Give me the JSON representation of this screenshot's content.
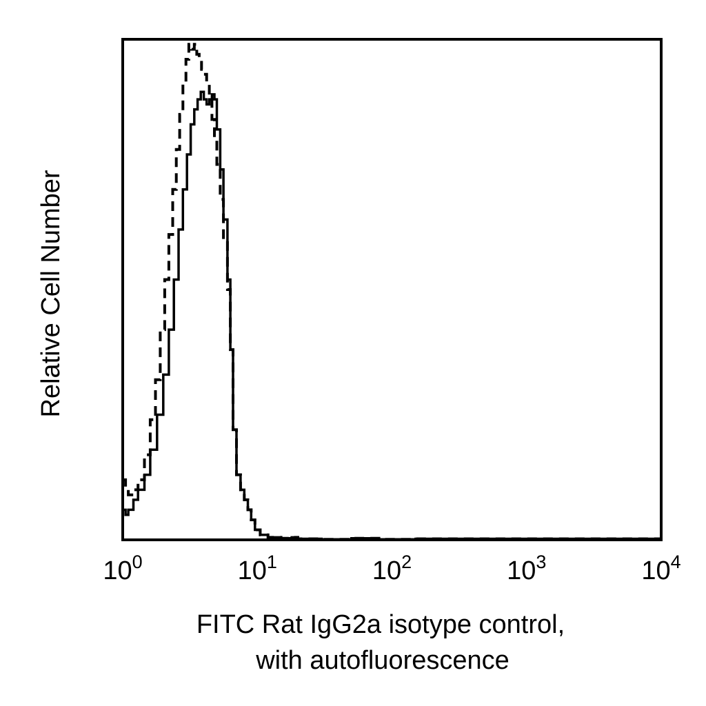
{
  "chart_data": {
    "type": "line",
    "xlabel_lines": [
      "FITC Rat IgG2a isotype control,",
      "with autofluorescence"
    ],
    "ylabel": "Relative Cell Number",
    "x_scale": "log",
    "xlim": [
      1,
      10000
    ],
    "ylim": [
      0,
      100
    ],
    "x_ticks": [
      {
        "base": "10",
        "exp": "0",
        "value": 1
      },
      {
        "base": "10",
        "exp": "1",
        "value": 10
      },
      {
        "base": "10",
        "exp": "2",
        "value": 100
      },
      {
        "base": "10",
        "exp": "3",
        "value": 1000
      },
      {
        "base": "10",
        "exp": "4",
        "value": 10000
      }
    ],
    "y_tick_labels": "none",
    "grid": false,
    "legend": "none",
    "series": [
      {
        "style": "solid",
        "color": "#000000",
        "x": [
          1.0,
          1.05,
          1.1,
          1.2,
          1.3,
          1.45,
          1.6,
          1.8,
          2.0,
          2.2,
          2.4,
          2.6,
          2.8,
          3.0,
          3.2,
          3.4,
          3.6,
          3.8,
          4.0,
          4.2,
          4.4,
          4.6,
          4.8,
          5.0,
          5.3,
          5.6,
          6.0,
          6.3,
          6.6,
          7.0,
          7.5,
          8.0,
          8.5,
          9.0,
          9.6,
          10.5,
          12.0,
          15.0,
          18.0,
          20.0,
          30.0,
          50.0,
          80.0,
          150.0,
          10000.0
        ],
        "y": [
          6,
          5,
          6,
          8,
          10,
          13,
          18,
          25,
          33,
          42,
          52,
          62,
          70,
          77,
          83,
          86,
          88,
          89.5,
          88,
          87,
          88,
          89,
          88,
          82,
          74,
          64,
          52,
          38,
          22,
          13,
          10,
          8,
          6,
          4,
          2,
          1,
          0.5,
          0.3,
          0.5,
          0.2,
          0.1,
          0.3,
          0.1,
          0.2,
          0
        ]
      },
      {
        "style": "dashed",
        "color": "#000000",
        "x": [
          1.0,
          1.05,
          1.1,
          1.2,
          1.3,
          1.45,
          1.6,
          1.75,
          1.9,
          2.05,
          2.2,
          2.35,
          2.5,
          2.65,
          2.8,
          2.95,
          3.1,
          3.25,
          3.4,
          3.55,
          3.7,
          3.85,
          4.0,
          4.2,
          4.4,
          4.6,
          4.8,
          5.0,
          5.3,
          5.6,
          6.0,
          6.3,
          6.6,
          7.0,
          7.5,
          8.0,
          8.5,
          9.0,
          9.6,
          10.5,
          12.0,
          15.0,
          18.0,
          20.0,
          30.0,
          50.0,
          80.0,
          150.0,
          10000.0
        ],
        "y": [
          12,
          10,
          9,
          10,
          12,
          17,
          24,
          32,
          42,
          52,
          61,
          70,
          78,
          85,
          91,
          96,
          99,
          98,
          99,
          97,
          96,
          94,
          93,
          91,
          88,
          84,
          80,
          75,
          68,
          60,
          50,
          38,
          22,
          13,
          10,
          8,
          6,
          4,
          2,
          1,
          0.5,
          0.3,
          0.5,
          0.2,
          0.1,
          0.3,
          0.1,
          0.2,
          0
        ]
      }
    ]
  }
}
